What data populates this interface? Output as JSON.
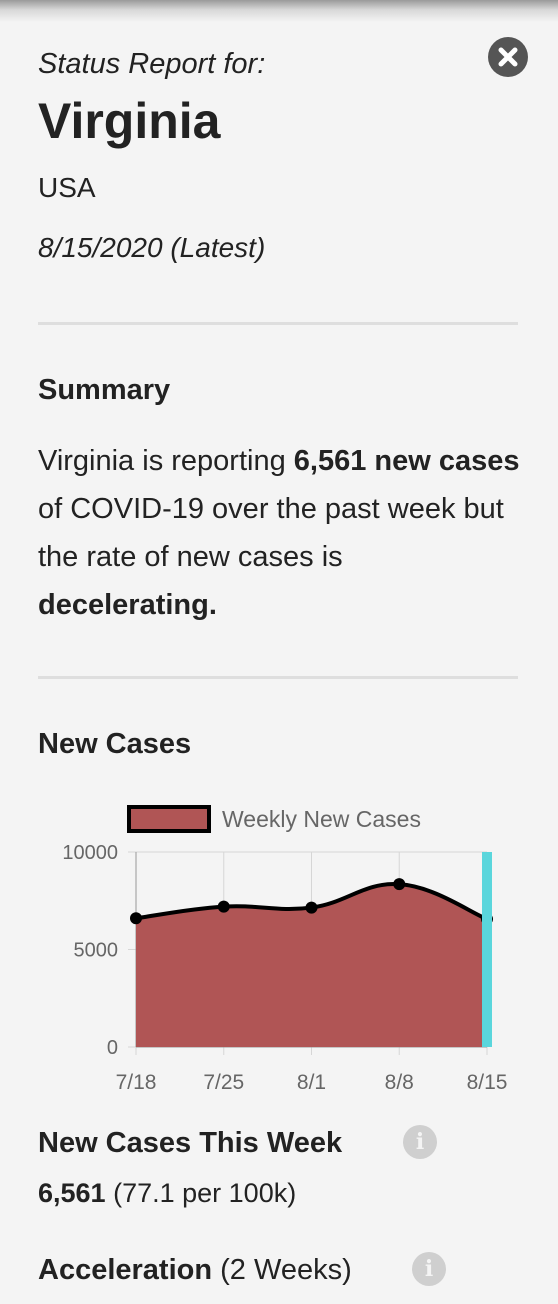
{
  "header": {
    "kicker": "Status Report for:",
    "place": "Virginia",
    "country": "USA",
    "date": "8/15/2020 (Latest)",
    "close_icon": "close-icon"
  },
  "summary": {
    "heading": "Summary",
    "p1": "Virginia is reporting ",
    "b1": "6,561 new cases",
    "p2": " of COVID-19 over the past week but the rate of new cases is ",
    "b2": "decelerating."
  },
  "new_cases": {
    "heading": "New Cases"
  },
  "chart_data": {
    "type": "area",
    "title": "",
    "legend": [
      "Weekly New Cases"
    ],
    "legend_position": "top",
    "categories": [
      "7/18",
      "7/25",
      "8/1",
      "8/8",
      "8/15"
    ],
    "series": [
      {
        "name": "Weekly New Cases",
        "values": [
          6600,
          7200,
          7150,
          8350,
          6561
        ],
        "fill": "#b05555",
        "stroke": "#000000"
      }
    ],
    "ylim": [
      0,
      10000
    ],
    "yticks": [
      0,
      5000,
      10000
    ],
    "ytick_labels": [
      "0",
      "5000",
      "10000"
    ],
    "grid": true,
    "highlight": {
      "category": "8/15",
      "color": "#5ad6dc"
    }
  },
  "stats": {
    "cases_title": "New Cases This Week",
    "cases_value": "6,561",
    "cases_rate": "(77.1 per 100k)",
    "accel_title": "Acceleration",
    "accel_period": "(2 Weeks)",
    "info_icon": "info-icon"
  }
}
